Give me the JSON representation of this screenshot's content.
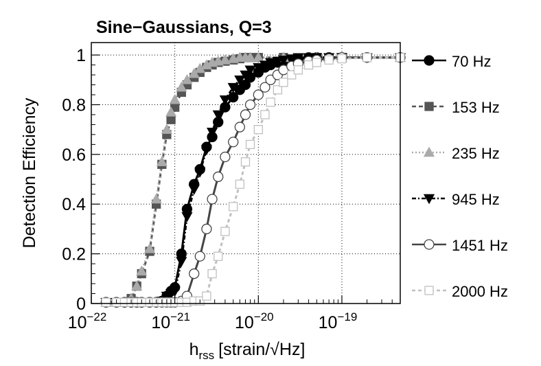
{
  "chart_data": {
    "type": "line",
    "title": "Sine−Gaussians, Q=3",
    "xlabel_main": "h",
    "xlabel_sub": "rss",
    "xlabel_unit": "[strain/√Hz]",
    "ylabel": "Detection Efficiency",
    "x_scale": "log",
    "xlim": [
      1e-22,
      5e-19
    ],
    "ylim": [
      0,
      1.05
    ],
    "x_ticks": [
      {
        "value": 1e-22,
        "base": "10",
        "exp": "−22"
      },
      {
        "value": 1e-21,
        "base": "10",
        "exp": "−21"
      },
      {
        "value": 1e-20,
        "base": "10",
        "exp": "−20"
      },
      {
        "value": 1e-19,
        "base": "10",
        "exp": "−19"
      }
    ],
    "y_ticks": [
      {
        "value": 0,
        "label": "0"
      },
      {
        "value": 0.2,
        "label": "0.2"
      },
      {
        "value": 0.4,
        "label": "0.4"
      },
      {
        "value": 0.6,
        "label": "0.6"
      },
      {
        "value": 0.8,
        "label": "0.8"
      },
      {
        "value": 1,
        "label": "1"
      }
    ],
    "grid": true,
    "legend_position": "right",
    "series": [
      {
        "name": "70 Hz",
        "color": "#000000",
        "dash": "",
        "marker": "circle-filled",
        "x": [
          1.5e-22,
          2e-22,
          2.5e-22,
          3e-22,
          3.5e-22,
          4e-22,
          5e-22,
          6e-22,
          7e-22,
          8e-22,
          9e-22,
          1e-21,
          1.2e-21,
          1.4e-21,
          1.7e-21,
          2e-21,
          2.4e-21,
          2.8e-21,
          3.3e-21,
          4e-21,
          5e-21,
          6e-21,
          7e-21,
          8e-21,
          1e-20,
          1.2e-20,
          1.4e-20,
          1.7e-20,
          2e-20,
          2.5e-20,
          3e-20,
          4e-20,
          5e-20,
          7e-20,
          1e-19,
          2e-19,
          5e-19
        ],
        "y": [
          0.005,
          0.005,
          0.005,
          0.005,
          0.005,
          0.005,
          0.005,
          0.005,
          0.01,
          0.03,
          0.05,
          0.065,
          0.2,
          0.38,
          0.48,
          0.54,
          0.63,
          0.67,
          0.73,
          0.79,
          0.83,
          0.86,
          0.88,
          0.91,
          0.93,
          0.95,
          0.96,
          0.97,
          0.975,
          0.98,
          0.985,
          0.99,
          0.99,
          0.99,
          0.99,
          0.99,
          0.99
        ]
      },
      {
        "name": "153 Hz",
        "color": "#555555",
        "dash": "6,4",
        "marker": "square-filled",
        "x": [
          1.5e-22,
          2e-22,
          2.5e-22,
          3e-22,
          3.5e-22,
          4e-22,
          5e-22,
          6e-22,
          7e-22,
          8e-22,
          9e-22,
          1e-21,
          1.2e-21,
          1.4e-21,
          1.7e-21,
          2e-21,
          2.4e-21,
          2.8e-21,
          3.3e-21,
          4e-21,
          5e-21,
          6e-21,
          7e-21,
          8e-21,
          1e-20,
          2e-20,
          5e-20,
          1e-19,
          5e-19
        ],
        "y": [
          0.005,
          0.005,
          0.005,
          0.02,
          0.07,
          0.12,
          0.21,
          0.4,
          0.56,
          0.68,
          0.74,
          0.79,
          0.85,
          0.88,
          0.91,
          0.93,
          0.95,
          0.96,
          0.97,
          0.975,
          0.98,
          0.985,
          0.99,
          0.99,
          0.99,
          0.99,
          0.99,
          0.99,
          0.99
        ]
      },
      {
        "name": "235 Hz",
        "color": "#aaaaaa",
        "dash": "2,3",
        "marker": "triangle-up-filled",
        "x": [
          1.5e-22,
          2e-22,
          2.5e-22,
          3e-22,
          3.5e-22,
          4e-22,
          5e-22,
          6e-22,
          7e-22,
          8e-22,
          9e-22,
          1e-21,
          1.2e-21,
          1.4e-21,
          1.7e-21,
          2e-21,
          2.4e-21,
          2.8e-21,
          3.3e-21,
          4e-21,
          5e-21,
          6e-21,
          7e-21,
          8e-21,
          1e-20,
          2e-20,
          5e-20,
          1e-19,
          5e-19
        ],
        "y": [
          0.005,
          0.005,
          0.005,
          0.02,
          0.07,
          0.13,
          0.22,
          0.42,
          0.57,
          0.7,
          0.77,
          0.82,
          0.87,
          0.9,
          0.925,
          0.945,
          0.96,
          0.97,
          0.975,
          0.98,
          0.985,
          0.99,
          0.99,
          0.99,
          0.99,
          0.99,
          0.99,
          0.99,
          0.99
        ]
      },
      {
        "name": "945 Hz",
        "color": "#000000",
        "dash": "6,3,2,3",
        "marker": "triangle-down-filled",
        "x": [
          1.5e-22,
          2e-22,
          2.5e-22,
          3e-22,
          3.5e-22,
          4e-22,
          5e-22,
          6e-22,
          7e-22,
          8e-22,
          9e-22,
          1e-21,
          1.2e-21,
          1.4e-21,
          1.7e-21,
          2e-21,
          2.4e-21,
          2.8e-21,
          3.3e-21,
          4e-21,
          5e-21,
          6e-21,
          7e-21,
          8e-21,
          1e-20,
          1.2e-20,
          1.4e-20,
          1.7e-20,
          2e-20,
          2.5e-20,
          3e-20,
          4e-20,
          5e-20,
          7e-20,
          1e-19,
          2e-19,
          5e-19
        ],
        "y": [
          0.005,
          0.005,
          0.005,
          0.005,
          0.005,
          0.005,
          0.005,
          0.005,
          0.01,
          0.03,
          0.04,
          0.05,
          0.17,
          0.35,
          0.46,
          0.53,
          0.62,
          0.69,
          0.76,
          0.82,
          0.87,
          0.9,
          0.92,
          0.94,
          0.95,
          0.96,
          0.97,
          0.975,
          0.98,
          0.985,
          0.99,
          0.99,
          0.99,
          0.99,
          0.99,
          0.99,
          0.99
        ]
      },
      {
        "name": "1451 Hz",
        "color": "#444444",
        "dash": "",
        "marker": "circle-open",
        "x": [
          1.5e-22,
          2e-22,
          2.5e-22,
          3e-22,
          3.5e-22,
          4e-22,
          5e-22,
          6e-22,
          7e-22,
          8e-22,
          9e-22,
          1e-21,
          1.2e-21,
          1.4e-21,
          1.7e-21,
          2e-21,
          2.4e-21,
          2.8e-21,
          3.3e-21,
          4e-21,
          5e-21,
          6e-21,
          7e-21,
          8e-21,
          1e-20,
          1.2e-20,
          1.4e-20,
          1.7e-20,
          2e-20,
          2.5e-20,
          3e-20,
          4e-20,
          5e-20,
          7e-20,
          1e-19,
          2e-19,
          5e-19
        ],
        "y": [
          0.005,
          0.005,
          0.005,
          0.005,
          0.005,
          0.005,
          0.005,
          0.005,
          0.005,
          0.005,
          0.005,
          0.005,
          0.01,
          0.03,
          0.12,
          0.19,
          0.3,
          0.42,
          0.51,
          0.59,
          0.65,
          0.71,
          0.76,
          0.8,
          0.84,
          0.87,
          0.9,
          0.92,
          0.94,
          0.955,
          0.965,
          0.975,
          0.98,
          0.985,
          0.99,
          0.99,
          0.99
        ]
      },
      {
        "name": "2000 Hz",
        "color": "#c0c0c0",
        "dash": "5,4",
        "marker": "square-open",
        "x": [
          1.5e-22,
          2e-22,
          2.5e-22,
          3e-22,
          3.5e-22,
          4e-22,
          5e-22,
          6e-22,
          7e-22,
          8e-22,
          9e-22,
          1e-21,
          1.2e-21,
          1.4e-21,
          1.7e-21,
          2e-21,
          2.4e-21,
          2.8e-21,
          3.3e-21,
          4e-21,
          5e-21,
          6e-21,
          7e-21,
          8e-21,
          1e-20,
          1.2e-20,
          1.4e-20,
          1.7e-20,
          2e-20,
          2.5e-20,
          3e-20,
          4e-20,
          5e-20,
          7e-20,
          1e-19,
          2e-19,
          5e-19
        ],
        "y": [
          0.005,
          0.005,
          0.005,
          0.005,
          0.005,
          0.005,
          0.005,
          0.005,
          0.005,
          0.005,
          0.005,
          0.005,
          0.005,
          0.005,
          0.01,
          0.01,
          0.03,
          0.12,
          0.19,
          0.29,
          0.39,
          0.48,
          0.57,
          0.64,
          0.7,
          0.76,
          0.81,
          0.86,
          0.89,
          0.92,
          0.94,
          0.96,
          0.97,
          0.98,
          0.985,
          0.99,
          0.99
        ]
      }
    ]
  }
}
